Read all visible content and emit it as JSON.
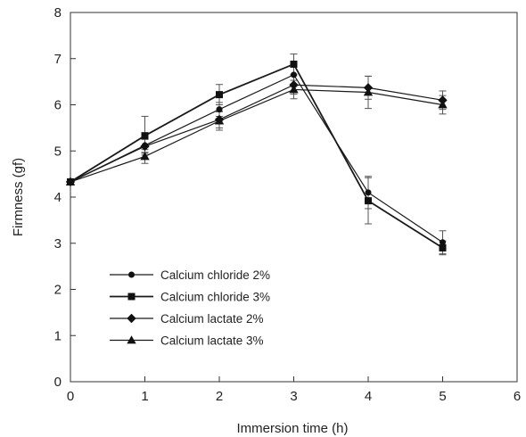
{
  "chart_data": {
    "type": "line",
    "title": "",
    "xlabel": "Immersion time (h)",
    "ylabel": "Firmness (gf)",
    "xlim": [
      0,
      6
    ],
    "ylim": [
      0,
      8
    ],
    "xticks": [
      0,
      1,
      2,
      3,
      4,
      5,
      6
    ],
    "yticks": [
      0,
      1,
      2,
      3,
      4,
      5,
      6,
      7,
      8
    ],
    "grid": false,
    "legend_position": "lower-left",
    "x": [
      0,
      1,
      2,
      3,
      4,
      5
    ],
    "series": [
      {
        "name": "Calcium chloride 2%",
        "marker": "circle",
        "values": [
          4.33,
          5.12,
          5.9,
          6.65,
          4.1,
          3.02
        ],
        "errors": [
          0.0,
          0.15,
          0.15,
          0.2,
          0.35,
          0.25
        ]
      },
      {
        "name": "Calcium chloride 3%",
        "marker": "square",
        "values": [
          4.33,
          5.33,
          6.22,
          6.88,
          3.92,
          2.9
        ],
        "errors": [
          0.0,
          0.42,
          0.22,
          0.22,
          0.5,
          0.15
        ]
      },
      {
        "name": "Calcium lactate 2%",
        "marker": "diamond",
        "values": [
          4.33,
          5.1,
          5.68,
          6.43,
          6.37,
          6.1
        ],
        "errors": [
          0.0,
          0.15,
          0.18,
          0.2,
          0.25,
          0.2
        ]
      },
      {
        "name": "Calcium lactate 3%",
        "marker": "triangle",
        "values": [
          4.33,
          4.88,
          5.65,
          6.33,
          6.27,
          6.0
        ],
        "errors": [
          0.0,
          0.15,
          0.2,
          0.2,
          0.35,
          0.2
        ]
      }
    ],
    "colors": {
      "line": "#1a1a1a",
      "marker": "#111111",
      "axis": "#333333"
    }
  }
}
